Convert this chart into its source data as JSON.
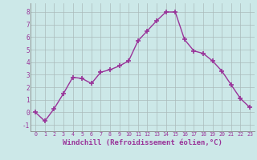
{
  "x": [
    0,
    1,
    2,
    3,
    4,
    5,
    6,
    7,
    8,
    9,
    10,
    11,
    12,
    13,
    14,
    15,
    16,
    17,
    18,
    19,
    20,
    21,
    22,
    23
  ],
  "y": [
    0,
    -0.7,
    0.3,
    1.5,
    2.8,
    2.7,
    2.3,
    3.2,
    3.4,
    3.7,
    4.1,
    5.7,
    6.5,
    7.3,
    8.0,
    8.0,
    5.8,
    4.9,
    4.7,
    4.1,
    3.3,
    2.2,
    1.1,
    0.4
  ],
  "line_color": "#993399",
  "marker": "+",
  "marker_size": 4,
  "background_color": "#cce8e8",
  "grid_color": "#aabbbb",
  "xlabel": "Windchill (Refroidissement éolien,°C)",
  "xlabel_fontsize": 6.5,
  "ylabel_ticks": [
    -1,
    0,
    1,
    2,
    3,
    4,
    5,
    6,
    7,
    8
  ],
  "xlim": [
    -0.5,
    23.5
  ],
  "ylim": [
    -1.5,
    8.7
  ],
  "tick_color": "#993399",
  "spine_color": "#888888"
}
